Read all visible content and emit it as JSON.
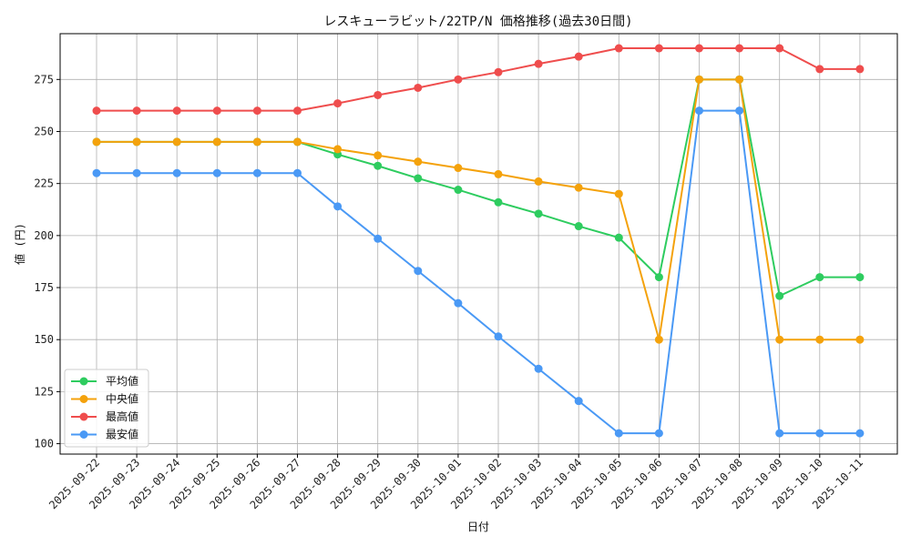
{
  "chart_data": {
    "type": "line",
    "title": "レスキューラビット/22TP/N 価格推移(過去30日間)",
    "xlabel": "日付",
    "ylabel": "値 (円)",
    "ylim": [
      95,
      297
    ],
    "yticks": [
      100,
      125,
      150,
      175,
      200,
      225,
      250,
      275
    ],
    "grid": true,
    "legend_position": "lower-left",
    "categories": [
      "2025-09-22",
      "2025-09-23",
      "2025-09-24",
      "2025-09-25",
      "2025-09-26",
      "2025-09-27",
      "2025-09-28",
      "2025-09-29",
      "2025-09-30",
      "2025-10-01",
      "2025-10-02",
      "2025-10-03",
      "2025-10-04",
      "2025-10-05",
      "2025-10-06",
      "2025-10-07",
      "2025-10-08",
      "2025-10-09",
      "2025-10-10",
      "2025-10-11"
    ],
    "series": [
      {
        "name": "平均値",
        "color": "#2ecc5f",
        "values": [
          245,
          245,
          245,
          245,
          245,
          245,
          239,
          233.5,
          227.5,
          222,
          216,
          210.5,
          204.5,
          199,
          180,
          275,
          275,
          171,
          180,
          180
        ]
      },
      {
        "name": "中央値",
        "color": "#f4a20c",
        "values": [
          245,
          245,
          245,
          245,
          245,
          245,
          241.5,
          238.5,
          235.5,
          232.5,
          229.5,
          226,
          223,
          220,
          150,
          275,
          275,
          150,
          150,
          150
        ]
      },
      {
        "name": "最高値",
        "color": "#ef4d4d",
        "values": [
          260,
          260,
          260,
          260,
          260,
          260,
          263.5,
          267.5,
          271,
          275,
          278.5,
          282.5,
          286,
          290,
          290,
          290,
          290,
          290,
          280,
          280
        ]
      },
      {
        "name": "最安値",
        "color": "#4a99f5",
        "values": [
          230,
          230,
          230,
          230,
          230,
          230,
          214,
          198.5,
          183,
          167.5,
          151.5,
          136,
          120.5,
          105,
          105,
          260,
          260,
          105,
          105,
          105
        ]
      }
    ]
  }
}
